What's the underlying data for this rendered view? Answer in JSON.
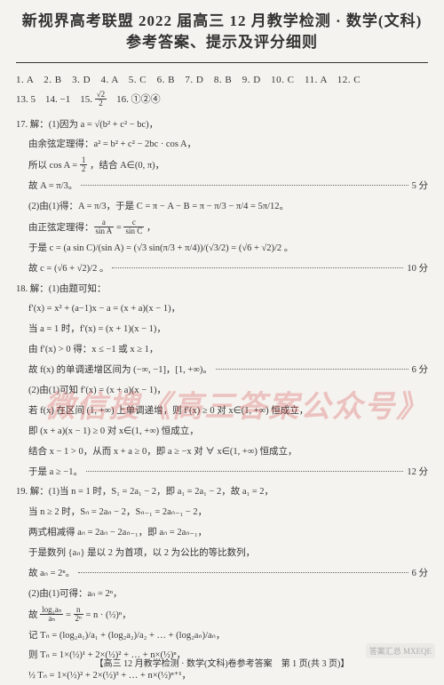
{
  "title": {
    "line1": "新视界高考联盟 2022 届高三 12 月教学检测 · 数学(文科)",
    "line2": "参考答案、提示及评分细则"
  },
  "mc": {
    "row1": "1. A　2. B　3. D　4. A　5. C　6. B　7. D　8. B　9. D　10. C　11. A　12. C",
    "row2_prefix": "13. 5　14. −1　15. ",
    "row2_frac_num": "√2",
    "row2_frac_den": "2",
    "row2_suffix": "　16. ①②④"
  },
  "q17": {
    "line1": "17. 解：(1)因为 a = √(b² + c² − bc)，",
    "line2": "由余弦定理得：a² = b² + c² − 2bc · cos A，",
    "line3_pre": "所以 cos A = ",
    "line3_frac_num": "1",
    "line3_frac_den": "2",
    "line3_post": " ，结合 A∈(0, π)，",
    "line4": "故 A = π/3。",
    "score1": "5 分",
    "line5": "(2)由(1)得：A = π/3，于是 C = π − A − B = π − π/3 − π/4 = 5π/12。",
    "line6_pre": "由正弦定理得：",
    "line6_frac1_num": "a",
    "line6_frac1_den": "sin A",
    "line6_mid": " = ",
    "line6_frac2_num": "c",
    "line6_frac2_den": "sin C",
    "line6_post": " ，",
    "line7": "于是 c = (a sin C)/(sin A) = (√3 sin(π/3 + π/4))/(√3/2) = (√6 + √2)/2 。",
    "line8": "故 c = (√6 + √2)/2 。",
    "score2": "10 分"
  },
  "q18": {
    "line1": "18. 解：(1)由题可知：",
    "line2": "f′(x) = x² + (a−1)x − a = (x + a)(x − 1)，",
    "line3": "当 a = 1 时，f′(x) = (x + 1)(x − 1)，",
    "line4": "由 f′(x) > 0 得：x ≤ −1 或 x ≥ 1，",
    "line5": "故 f(x) 的单调递增区间为 (−∞, −1]，[1, +∞)。",
    "score1": "6 分",
    "line6": "(2)由(1)可知 f′(x) = (x + a)(x − 1)，",
    "line7": "若 f(x) 在区间 (1, +∞) 上单调递增，则 f′(x) ≥ 0 对 x∈(1, +∞) 恒成立，",
    "line8": "即 (x + a)(x − 1) ≥ 0 对 x∈(1, +∞) 恒成立，",
    "line9": "结合 x − 1 > 0，从而 x + a ≥ 0，即 a ≥ −x 对 ∀ x∈(1, +∞) 恒成立，",
    "line10": "于是 a ≥ −1。",
    "score2": "12 分"
  },
  "q19": {
    "line1": "19. 解：(1)当 n = 1 时，S₁ = 2a₁ − 2，即 a₁ = 2a₁ − 2，故 a₁ = 2，",
    "line2": "当 n ≥ 2 时，Sₙ = 2aₙ − 2，Sₙ₋₁ = 2aₙ₋₁ − 2，",
    "line3": "两式相减得 aₙ = 2aₙ − 2aₙ₋₁，即 aₙ = 2aₙ₋₁，",
    "line4": "于是数列 {aₙ} 是以 2 为首项，以 2 为公比的等比数列，",
    "line5": "故 aₙ = 2ⁿ。",
    "score1": "6 分",
    "line6": "(2)由(1)可得：aₙ = 2ⁿ，",
    "line7_pre": "故 ",
    "line7_frac_num": "log₂aₙ",
    "line7_frac_den": "aₙ",
    "line7_mid": " = ",
    "line7_frac2_num": "n",
    "line7_frac2_den": "2ⁿ",
    "line7_post": " = n · (½)ⁿ，",
    "line8": "记 Tₙ = (log₂a₁)/a₁ + (log₂a₂)/a₂ + … + (log₂aₙ)/aₙ，",
    "line9": "则 Tₙ = 1×(½)¹ + 2×(½)² + … + n×(½)ⁿ，",
    "line10": "½ Tₙ = 1×(½)² + 2×(½)³ + … + n×(½)ⁿ⁺¹，"
  },
  "footer": "【高三 12 月教学检测 · 数学(文科)卷参考答案　第 1 页(共 3 页)】",
  "watermark": "微信搜《高三答案公众号》",
  "corner": "答案汇总\nMXEQE"
}
